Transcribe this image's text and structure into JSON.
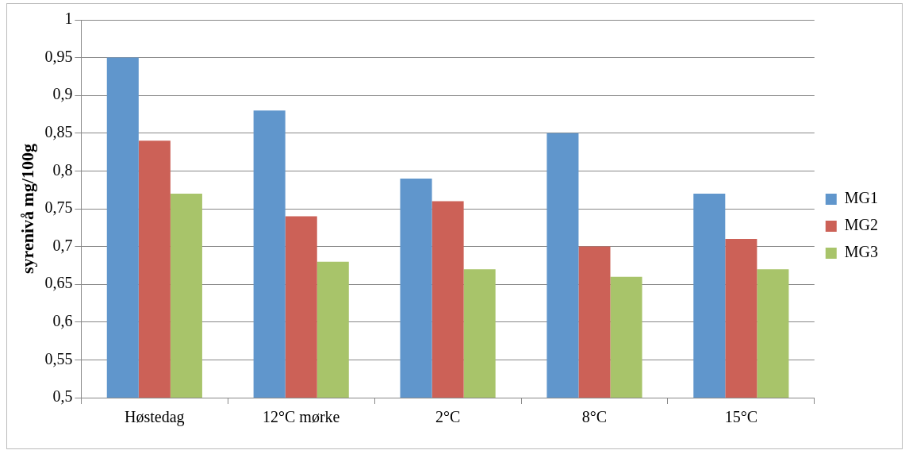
{
  "chart_data": {
    "type": "bar",
    "ylabel": "syrenivå mg/100g",
    "categories": [
      "Høstedag",
      "12°C mørke",
      "2°C",
      "8°C",
      "15°C"
    ],
    "series": [
      {
        "name": "MG1",
        "color": "#6096cc",
        "values": [
          0.95,
          0.88,
          0.79,
          0.85,
          0.77
        ]
      },
      {
        "name": "MG2",
        "color": "#cc6157",
        "values": [
          0.84,
          0.74,
          0.76,
          0.7,
          0.71
        ]
      },
      {
        "name": "MG3",
        "color": "#a8c46a",
        "values": [
          0.77,
          0.68,
          0.67,
          0.66,
          0.67
        ]
      }
    ],
    "ylim": [
      0.5,
      1
    ],
    "yticks": [
      {
        "value": 0.5,
        "label": "0,5"
      },
      {
        "value": 0.55,
        "label": "0,55"
      },
      {
        "value": 0.6,
        "label": "0,6"
      },
      {
        "value": 0.65,
        "label": "0,65"
      },
      {
        "value": 0.7,
        "label": "0,7"
      },
      {
        "value": 0.75,
        "label": "0,75"
      },
      {
        "value": 0.8,
        "label": "0,8"
      },
      {
        "value": 0.85,
        "label": "0,85"
      },
      {
        "value": 0.9,
        "label": "0,9"
      },
      {
        "value": 0.95,
        "label": "0,95"
      },
      {
        "value": 1,
        "label": "1"
      }
    ],
    "grid": "y",
    "legend": "right"
  }
}
